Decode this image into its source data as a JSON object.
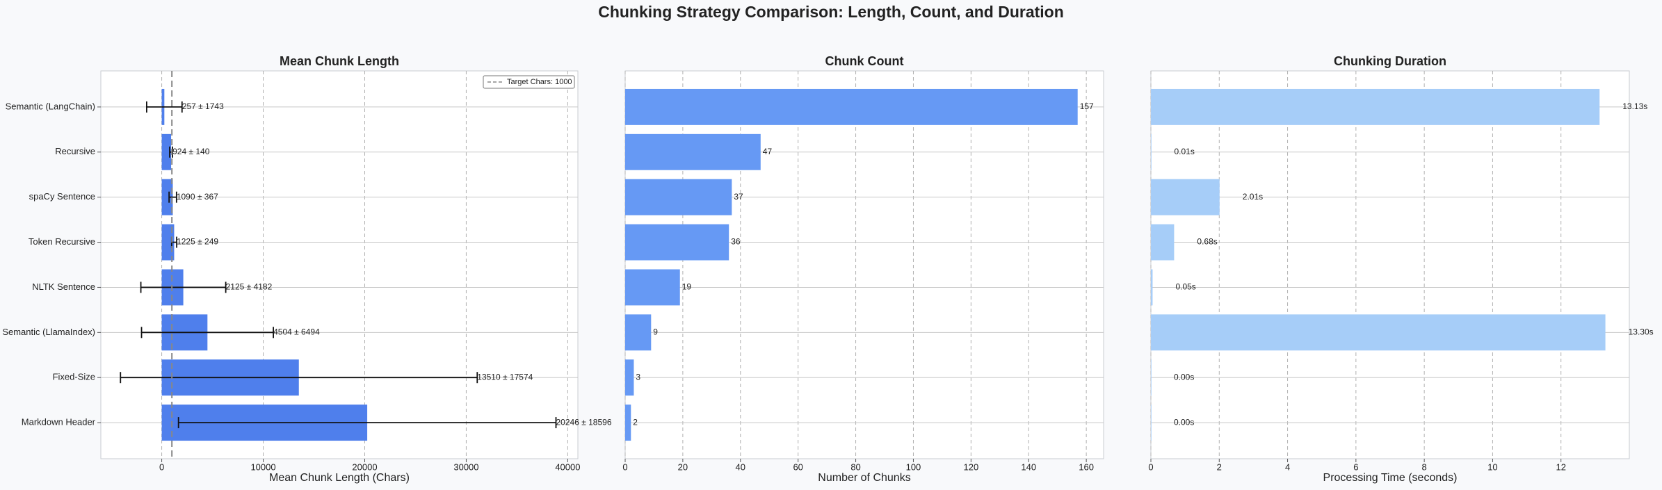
{
  "title": "Chunking Strategy Comparison: Length, Count, and Duration",
  "chart_data": [
    {
      "type": "bar",
      "orientation": "horizontal",
      "title": "Mean Chunk Length",
      "xlabel": "Mean Chunk Length (Chars)",
      "categories": [
        "Semantic (LangChain)",
        "Recursive",
        "spaCy Sentence",
        "Token Recursive",
        "NLTK Sentence",
        "Semantic (LlamaIndex)",
        "Fixed-Size",
        "Markdown Header"
      ],
      "values": [
        257,
        924,
        1090,
        1225,
        2125,
        4504,
        13510,
        20246
      ],
      "errors": [
        1743,
        140,
        367,
        249,
        4182,
        6494,
        17574,
        18596
      ],
      "value_labels": [
        "257 ± 1743",
        "924 ± 140",
        "1090 ± 367",
        "1225 ± 249",
        "2125 ± 4182",
        "4504 ± 6494",
        "13510 ± 17574",
        "20246 ± 18596"
      ],
      "color": "#4f7fec",
      "reference_line": {
        "value": 1000,
        "label": "Target Chars: 1000"
      },
      "legend": "upper right",
      "xlim": [
        -6000,
        41000
      ],
      "xticks": [
        0,
        10000,
        20000,
        30000,
        40000
      ],
      "grid": true
    },
    {
      "type": "bar",
      "orientation": "horizontal",
      "title": "Chunk Count",
      "xlabel": "Number of Chunks",
      "values": [
        157,
        47,
        37,
        36,
        19,
        9,
        3,
        2
      ],
      "color": "#6699f4",
      "xlim": [
        0,
        166
      ],
      "xticks": [
        0,
        20,
        40,
        60,
        80,
        100,
        120,
        140,
        160
      ],
      "grid": true
    },
    {
      "type": "bar",
      "orientation": "horizontal",
      "title": "Chunking Duration",
      "xlabel": "Processing Time (seconds)",
      "values": [
        13.13,
        0.01,
        2.01,
        0.68,
        0.05,
        13.3,
        0.0,
        0.0
      ],
      "value_labels": [
        "13.13s",
        "0.01s",
        "2.01s",
        "0.68s",
        "0.05s",
        "13.30s",
        "0.00s",
        "0.00s"
      ],
      "color": "#a6cdf8",
      "xlim": [
        0,
        14
      ],
      "xticks": [
        0,
        2,
        4,
        6,
        8,
        10,
        12
      ],
      "grid": true
    }
  ]
}
